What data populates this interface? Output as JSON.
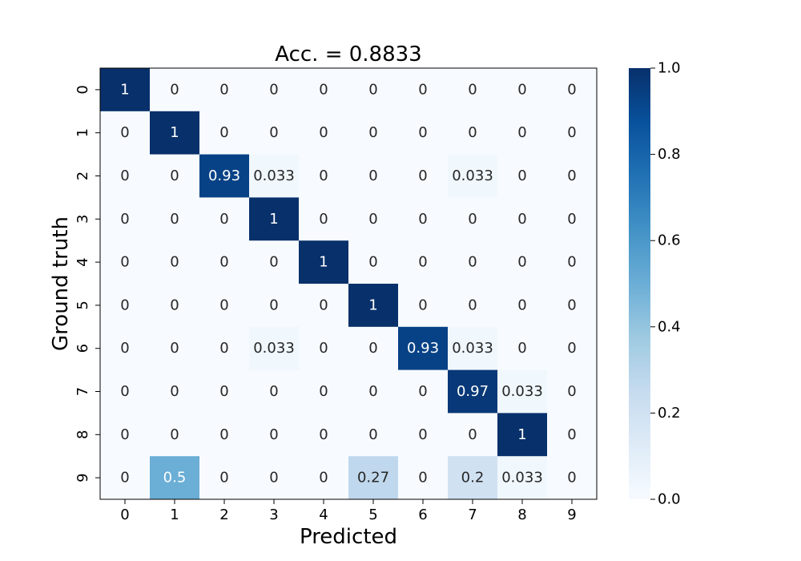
{
  "chart_data": {
    "type": "heatmap",
    "title": "Acc. = 0.8833",
    "xlabel": "Predicted",
    "ylabel": "Ground truth",
    "x_categories": [
      "0",
      "1",
      "2",
      "3",
      "4",
      "5",
      "6",
      "7",
      "8",
      "9"
    ],
    "y_categories": [
      "0",
      "1",
      "2",
      "3",
      "4",
      "5",
      "6",
      "7",
      "8",
      "9"
    ],
    "matrix": [
      [
        1,
        0,
        0,
        0,
        0,
        0,
        0,
        0,
        0,
        0
      ],
      [
        0,
        1,
        0,
        0,
        0,
        0,
        0,
        0,
        0,
        0
      ],
      [
        0,
        0,
        0.93,
        0.033,
        0,
        0,
        0,
        0.033,
        0,
        0
      ],
      [
        0,
        0,
        0,
        1,
        0,
        0,
        0,
        0,
        0,
        0
      ],
      [
        0,
        0,
        0,
        0,
        1,
        0,
        0,
        0,
        0,
        0
      ],
      [
        0,
        0,
        0,
        0,
        0,
        1,
        0,
        0,
        0,
        0
      ],
      [
        0,
        0,
        0,
        0.033,
        0,
        0,
        0.93,
        0.033,
        0,
        0
      ],
      [
        0,
        0,
        0,
        0,
        0,
        0,
        0,
        0.97,
        0.033,
        0
      ],
      [
        0,
        0,
        0,
        0,
        0,
        0,
        0,
        0,
        1,
        0
      ],
      [
        0,
        0.5,
        0,
        0,
        0,
        0.27,
        0,
        0.2,
        0.033,
        0
      ]
    ],
    "colormap": "Blues",
    "vmin": 0,
    "vmax": 1,
    "colorbar_ticks": [
      "0.0",
      "0.2",
      "0.4",
      "0.6",
      "0.8",
      "1.0"
    ],
    "grid": false
  }
}
